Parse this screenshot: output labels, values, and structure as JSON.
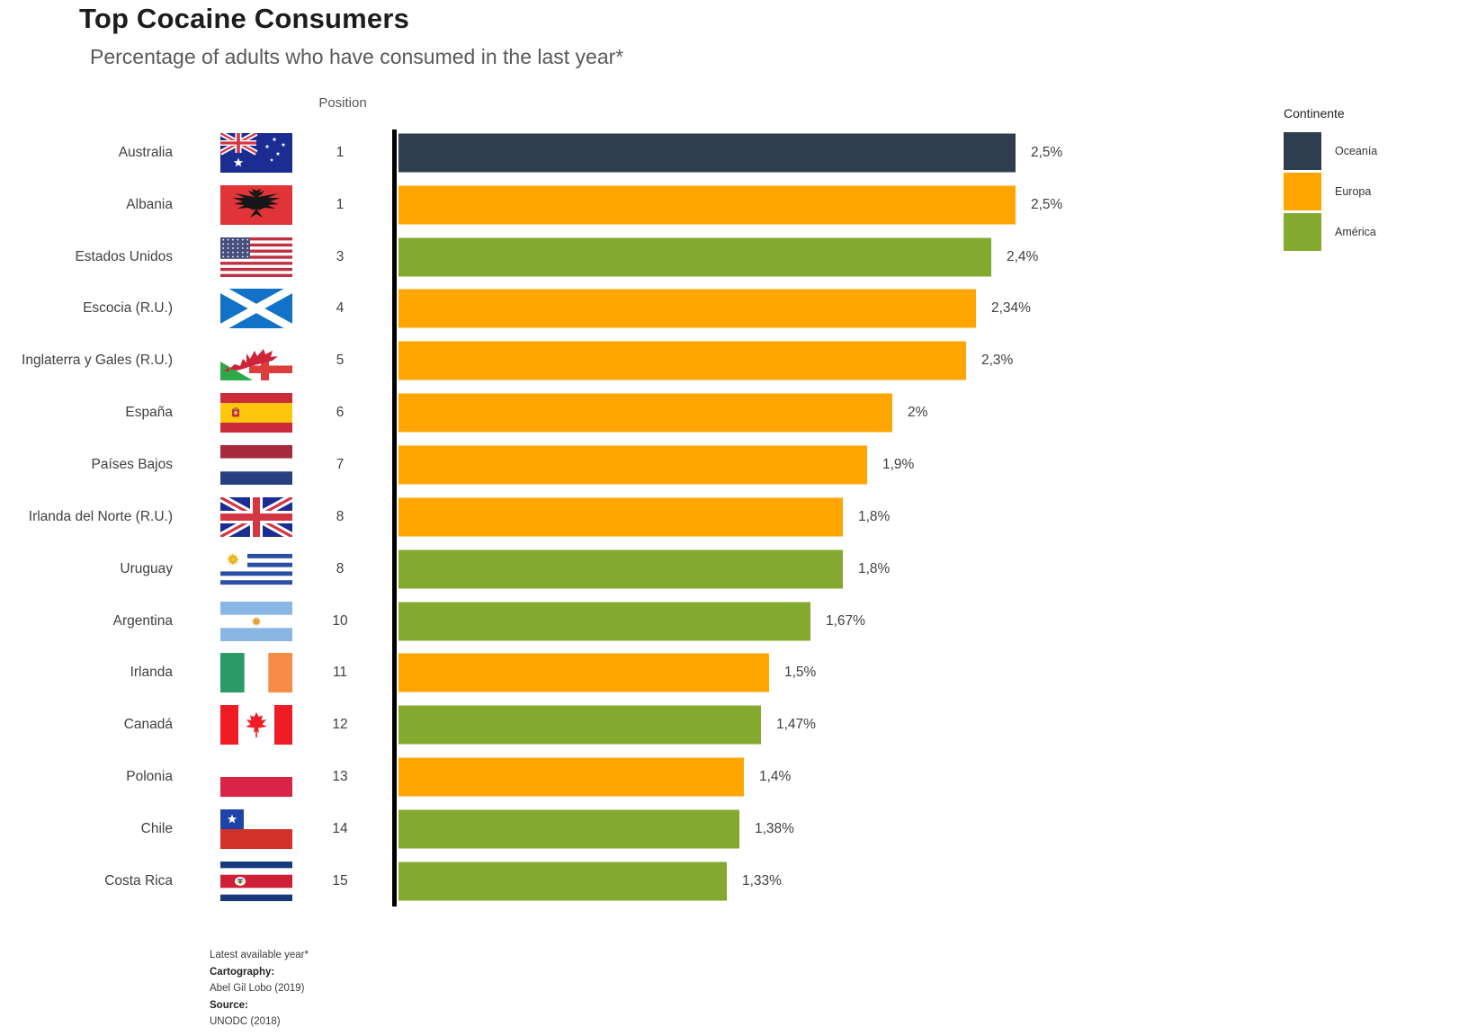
{
  "title": "Top Cocaine Consumers",
  "subtitle": "Percentage of adults who have consumed in the last year*",
  "columns": {
    "position_header": "Position"
  },
  "legend": {
    "title": "Continente",
    "entries": [
      {
        "label": "Oceanía",
        "color": "#2E3E4E",
        "swatch": "oceania-legend-swatch"
      },
      {
        "label": "Europa",
        "color": "#FFA502",
        "swatch": "europa-legend-swatch"
      },
      {
        "label": "América",
        "color": "#84A92F",
        "swatch": "america-legend-swatch"
      }
    ]
  },
  "chart_data": {
    "type": "bar",
    "orientation": "horizontal",
    "unit": "%",
    "value_axis_max": 2.5,
    "continent_colors": {
      "Oceanía": "#2E3E4E",
      "Europa": "#FFA502",
      "América": "#84A92F"
    },
    "rows": [
      {
        "country": "Australia",
        "flag": "flag-australia",
        "position": "1",
        "value": 2.5,
        "label": "2,5%",
        "continent": "Oceanía"
      },
      {
        "country": "Albania",
        "flag": "flag-albania",
        "position": "1",
        "value": 2.5,
        "label": "2,5%",
        "continent": "Europa"
      },
      {
        "country": "Estados Unidos",
        "flag": "flag-usa",
        "position": "3",
        "value": 2.4,
        "label": "2,4%",
        "continent": "América"
      },
      {
        "country": "Escocia (R.U.)",
        "flag": "flag-scotland",
        "position": "4",
        "value": 2.34,
        "label": "2,34%",
        "continent": "Europa"
      },
      {
        "country": "Inglaterra y Gales (R.U.)",
        "flag": "flag-england-wales",
        "position": "5",
        "value": 2.3,
        "label": "2,3%",
        "continent": "Europa"
      },
      {
        "country": "España",
        "flag": "flag-spain",
        "position": "6",
        "value": 2.0,
        "label": "2%",
        "continent": "Europa"
      },
      {
        "country": "Países Bajos",
        "flag": "flag-netherlands",
        "position": "7",
        "value": 1.9,
        "label": "1,9%",
        "continent": "Europa"
      },
      {
        "country": "Irlanda del Norte (R.U.)",
        "flag": "flag-union-jack",
        "position": "8",
        "value": 1.8,
        "label": "1,8%",
        "continent": "Europa"
      },
      {
        "country": "Uruguay",
        "flag": "flag-uruguay",
        "position": "8",
        "value": 1.8,
        "label": "1,8%",
        "continent": "América"
      },
      {
        "country": "Argentina",
        "flag": "flag-argentina",
        "position": "10",
        "value": 1.67,
        "label": "1,67%",
        "continent": "América"
      },
      {
        "country": "Irlanda",
        "flag": "flag-ireland",
        "position": "11",
        "value": 1.5,
        "label": "1,5%",
        "continent": "Europa"
      },
      {
        "country": "Canadá",
        "flag": "flag-canada",
        "position": "12",
        "value": 1.47,
        "label": "1,47%",
        "continent": "América"
      },
      {
        "country": "Polonia",
        "flag": "flag-poland",
        "position": "13",
        "value": 1.4,
        "label": "1,4%",
        "continent": "Europa"
      },
      {
        "country": "Chile",
        "flag": "flag-chile",
        "position": "14",
        "value": 1.38,
        "label": "1,38%",
        "continent": "América"
      },
      {
        "country": "Costa Rica",
        "flag": "flag-costa-rica",
        "position": "15",
        "value": 1.33,
        "label": "1,33%",
        "continent": "América"
      }
    ]
  },
  "footer": {
    "note": "Latest available year*",
    "cartography_label": "Cartography:",
    "cartography_value": "Abel Gil Lobo (2019)",
    "source_label": "Source:",
    "source_value": "UNODC (2018)"
  }
}
